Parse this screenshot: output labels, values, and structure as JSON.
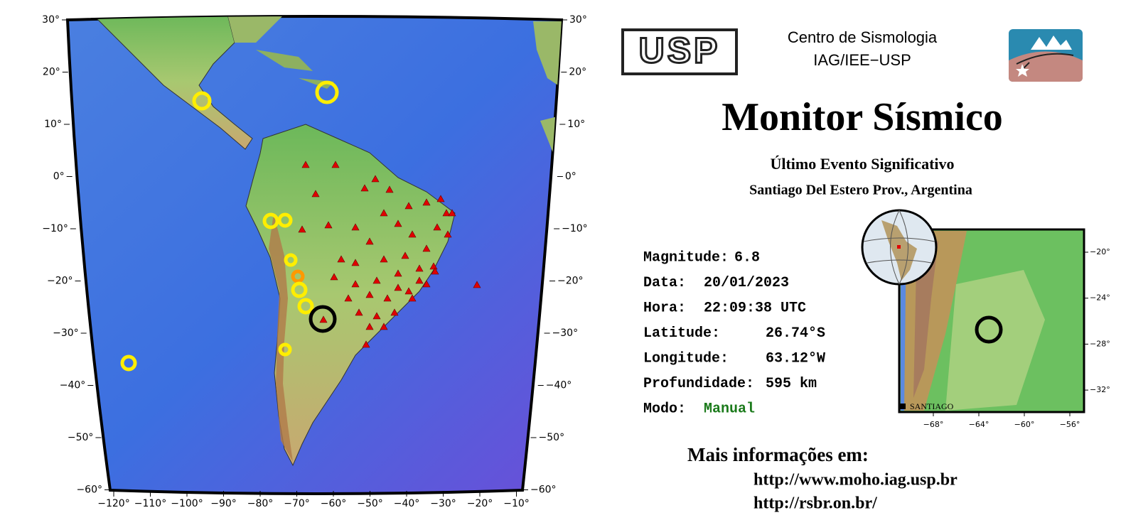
{
  "map": {
    "left_ticks": [
      "30°",
      "20°",
      "10°",
      "0°",
      "−10°",
      "−20°",
      "−30°",
      "−40°",
      "−50°",
      "−60°"
    ],
    "right_ticks": [
      "30°",
      "20°",
      "10°",
      "0°",
      "−10°",
      "−20°",
      "−30°",
      "−40°",
      "−50°",
      "−60°"
    ],
    "bottom_ticks": [
      "−120°",
      "−110°",
      "−100°",
      "−90°",
      "−80°",
      "−70°",
      "−60°",
      "−50°",
      "−40°",
      "−30°",
      "−20°",
      "−10°"
    ]
  },
  "header": {
    "logo": "USP",
    "center_line1": "Centro de Sismologia",
    "center_line2": "IAG/IEE−USP"
  },
  "title": "Monitor Sísmico",
  "subtitle": "Último Evento Significativo",
  "region": "Santiago Del Estero Prov., Argentina",
  "fields": [
    {
      "label": "Magnitude:",
      "value": "6.8"
    },
    {
      "label": "Data:",
      "value": "20/01/2023"
    },
    {
      "label": "Hora:",
      "value": "22:09:38 UTC"
    },
    {
      "label": "Latitude:",
      "value": "26.74°S"
    },
    {
      "label": "Longitude:",
      "value": "63.12°W"
    },
    {
      "label": "Profundidade:",
      "value": "595 km"
    },
    {
      "label": "Modo:",
      "value": "Manual"
    }
  ],
  "inset": {
    "place": "SANTIAGO",
    "right_ticks": [
      "−20°",
      "−24°",
      "−28°",
      "−32°"
    ],
    "bottom_ticks": [
      "−68°",
      "−64°",
      "−60°",
      "−56°"
    ]
  },
  "footer": {
    "heading": "Mais informações em:",
    "links": [
      "http://www.moho.iag.usp.br",
      "http://rsbr.on.br/"
    ]
  }
}
